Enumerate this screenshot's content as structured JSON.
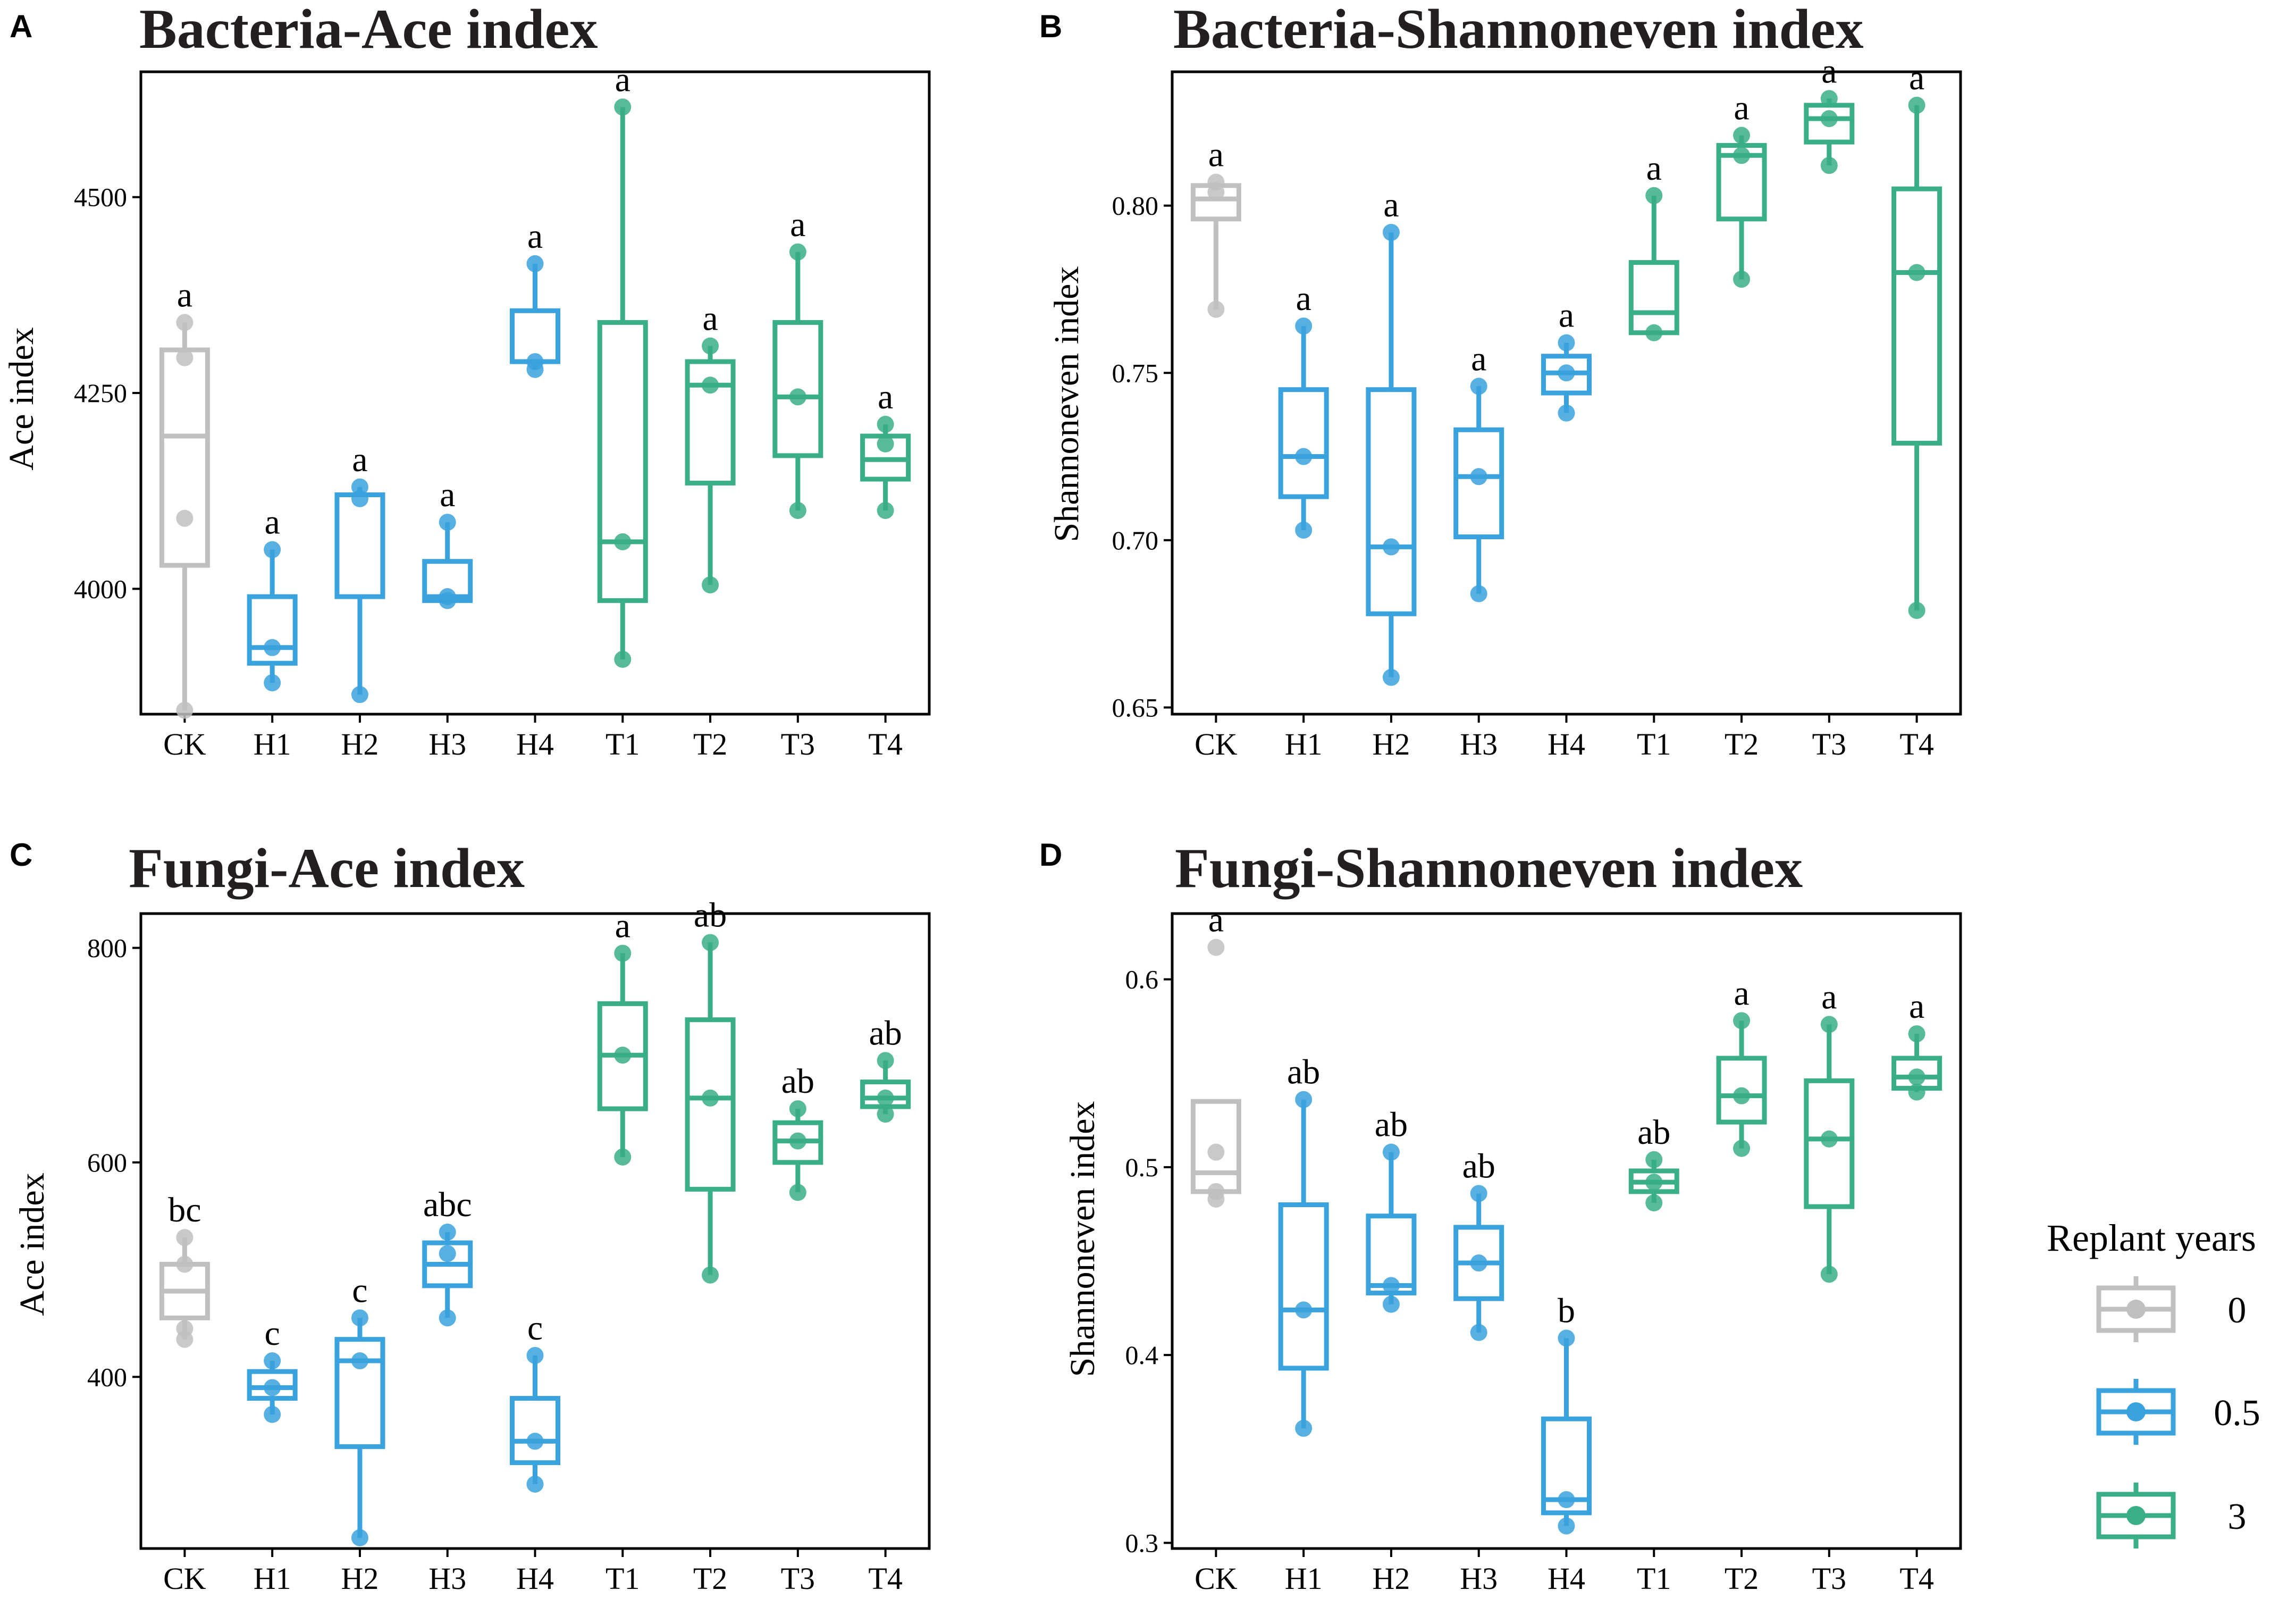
{
  "colors": {
    "0": "#c0c0c0",
    "0.5": "#3aa2dc",
    "3": "#3aae86"
  },
  "categories": [
    "CK",
    "H1",
    "H2",
    "H3",
    "H4",
    "T1",
    "T2",
    "T3",
    "T4"
  ],
  "groups": [
    "0",
    "0.5",
    "0.5",
    "0.5",
    "0.5",
    "3",
    "3",
    "3",
    "3"
  ],
  "legend": {
    "title": "Replant years",
    "items": [
      "0",
      "0.5",
      "3"
    ]
  },
  "chart_data": [
    {
      "panel": "A",
      "type": "box",
      "title": "Bacteria-Ace index",
      "ylabel": "Ace index",
      "ylim": [
        3840,
        4660
      ],
      "yticks": [
        "4000",
        "4250",
        "4500"
      ],
      "letters": [
        "a",
        "a",
        "a",
        "a",
        "a",
        "a",
        "a",
        "a",
        "a"
      ],
      "boxes": [
        {
          "q1": 4030,
          "med": 4195,
          "q3": 4305,
          "lo": 3845,
          "hi": 4340,
          "pts": [
            4295,
            4090,
            4340,
            3845
          ]
        },
        {
          "q1": 3905,
          "med": 3925,
          "q3": 3990,
          "lo": 3880,
          "hi": 4050,
          "pts": [
            3880,
            3925,
            4050
          ]
        },
        {
          "q1": 3990,
          "med": 4120,
          "q3": 4120,
          "lo": 3865,
          "hi": 4130,
          "pts": [
            3865,
            4115,
            4130
          ]
        },
        {
          "q1": 3985,
          "med": 3990,
          "q3": 4035,
          "lo": 3985,
          "hi": 4085,
          "pts": [
            3985,
            3990,
            4085
          ]
        },
        {
          "q1": 4290,
          "med": 4290,
          "q3": 4355,
          "lo": 4280,
          "hi": 4415,
          "pts": [
            4280,
            4290,
            4415
          ]
        },
        {
          "q1": 3985,
          "med": 4060,
          "q3": 4340,
          "lo": 3910,
          "hi": 4615,
          "pts": [
            3910,
            4060,
            4615
          ]
        },
        {
          "q1": 4135,
          "med": 4260,
          "q3": 4290,
          "lo": 4005,
          "hi": 4310,
          "pts": [
            4005,
            4260,
            4310
          ]
        },
        {
          "q1": 4170,
          "med": 4245,
          "q3": 4340,
          "lo": 4100,
          "hi": 4430,
          "pts": [
            4100,
            4245,
            4430
          ]
        },
        {
          "q1": 4140,
          "med": 4165,
          "q3": 4195,
          "lo": 4100,
          "hi": 4210,
          "pts": [
            4100,
            4185,
            4210
          ]
        }
      ]
    },
    {
      "panel": "B",
      "type": "box",
      "title": "Bacteria-Shannoneven index",
      "ylabel": "Shannoneven index",
      "ylim": [
        0.648,
        0.84
      ],
      "yticks": [
        "0.65",
        "0.70",
        "0.75",
        "0.80"
      ],
      "letters": [
        "a",
        "a",
        "a",
        "a",
        "a",
        "a",
        "a",
        "a",
        "a"
      ],
      "boxes": [
        {
          "q1": 0.796,
          "med": 0.802,
          "q3": 0.806,
          "lo": 0.769,
          "hi": 0.807,
          "pts": [
            0.769,
            0.804,
            0.807
          ]
        },
        {
          "q1": 0.713,
          "med": 0.725,
          "q3": 0.745,
          "lo": 0.703,
          "hi": 0.764,
          "pts": [
            0.703,
            0.725,
            0.764
          ]
        },
        {
          "q1": 0.678,
          "med": 0.698,
          "q3": 0.745,
          "lo": 0.659,
          "hi": 0.792,
          "pts": [
            0.659,
            0.698,
            0.792
          ]
        },
        {
          "q1": 0.701,
          "med": 0.719,
          "q3": 0.733,
          "lo": 0.684,
          "hi": 0.746,
          "pts": [
            0.684,
            0.719,
            0.746
          ]
        },
        {
          "q1": 0.744,
          "med": 0.75,
          "q3": 0.755,
          "lo": 0.738,
          "hi": 0.759,
          "pts": [
            0.738,
            0.75,
            0.759
          ]
        },
        {
          "q1": 0.762,
          "med": 0.768,
          "q3": 0.783,
          "lo": 0.762,
          "hi": 0.803,
          "pts": [
            0.762,
            0.803
          ]
        },
        {
          "q1": 0.796,
          "med": 0.815,
          "q3": 0.818,
          "lo": 0.778,
          "hi": 0.821,
          "pts": [
            0.778,
            0.815,
            0.821
          ]
        },
        {
          "q1": 0.819,
          "med": 0.826,
          "q3": 0.83,
          "lo": 0.812,
          "hi": 0.832,
          "pts": [
            0.812,
            0.826,
            0.832
          ]
        },
        {
          "q1": 0.729,
          "med": 0.78,
          "q3": 0.805,
          "lo": 0.679,
          "hi": 0.83,
          "pts": [
            0.679,
            0.78,
            0.83
          ]
        }
      ]
    },
    {
      "panel": "C",
      "type": "box",
      "title": "Fungi-Ace index",
      "ylabel": "Ace index",
      "ylim": [
        240,
        832
      ],
      "yticks": [
        "400",
        "600",
        "800"
      ],
      "letters": [
        "bc",
        "c",
        "c",
        "abc",
        "c",
        "a",
        "ab",
        "ab",
        "ab"
      ],
      "boxes": [
        {
          "q1": 455,
          "med": 480,
          "q3": 505,
          "lo": 435,
          "hi": 530,
          "pts": [
            435,
            505,
            530,
            445
          ]
        },
        {
          "q1": 380,
          "med": 390,
          "q3": 405,
          "lo": 365,
          "hi": 415,
          "pts": [
            365,
            390,
            415
          ]
        },
        {
          "q1": 335,
          "med": 415,
          "q3": 435,
          "lo": 250,
          "hi": 455,
          "pts": [
            250,
            415,
            455
          ]
        },
        {
          "q1": 485,
          "med": 505,
          "q3": 525,
          "lo": 455,
          "hi": 535,
          "pts": [
            455,
            515,
            535
          ]
        },
        {
          "q1": 320,
          "med": 340,
          "q3": 380,
          "lo": 300,
          "hi": 420,
          "pts": [
            300,
            340,
            420
          ]
        },
        {
          "q1": 650,
          "med": 700,
          "q3": 748,
          "lo": 605,
          "hi": 795,
          "pts": [
            605,
            700,
            795
          ]
        },
        {
          "q1": 575,
          "med": 660,
          "q3": 733,
          "lo": 495,
          "hi": 805,
          "pts": [
            495,
            660,
            805
          ]
        },
        {
          "q1": 600,
          "med": 620,
          "q3": 637,
          "lo": 572,
          "hi": 650,
          "pts": [
            572,
            620,
            650
          ]
        },
        {
          "q1": 652,
          "med": 660,
          "q3": 675,
          "lo": 645,
          "hi": 695,
          "pts": [
            645,
            660,
            695
          ]
        }
      ]
    },
    {
      "panel": "D",
      "type": "box",
      "title": "Fungi-Shannoneven index",
      "ylabel": "Shannoneven index",
      "ylim": [
        0.297,
        0.635
      ],
      "yticks": [
        "0.3",
        "0.4",
        "0.5",
        "0.6"
      ],
      "letters": [
        "a",
        "ab",
        "ab",
        "ab",
        "b",
        "ab",
        "a",
        "a",
        "a"
      ],
      "boxes": [
        {
          "q1": 0.487,
          "med": 0.497,
          "q3": 0.535,
          "lo": 0.483,
          "hi": 0.535,
          "pts": [
            0.483,
            0.487,
            0.508,
            0.617
          ]
        },
        {
          "q1": 0.393,
          "med": 0.424,
          "q3": 0.48,
          "lo": 0.361,
          "hi": 0.536,
          "pts": [
            0.361,
            0.424,
            0.536
          ]
        },
        {
          "q1": 0.433,
          "med": 0.437,
          "q3": 0.474,
          "lo": 0.427,
          "hi": 0.508,
          "pts": [
            0.427,
            0.437,
            0.508
          ]
        },
        {
          "q1": 0.43,
          "med": 0.449,
          "q3": 0.468,
          "lo": 0.412,
          "hi": 0.486,
          "pts": [
            0.412,
            0.449,
            0.486
          ]
        },
        {
          "q1": 0.316,
          "med": 0.323,
          "q3": 0.366,
          "lo": 0.309,
          "hi": 0.409,
          "pts": [
            0.309,
            0.323,
            0.409
          ]
        },
        {
          "q1": 0.487,
          "med": 0.492,
          "q3": 0.498,
          "lo": 0.481,
          "hi": 0.504,
          "pts": [
            0.481,
            0.492,
            0.504
          ]
        },
        {
          "q1": 0.524,
          "med": 0.538,
          "q3": 0.558,
          "lo": 0.51,
          "hi": 0.578,
          "pts": [
            0.51,
            0.538,
            0.578
          ]
        },
        {
          "q1": 0.479,
          "med": 0.515,
          "q3": 0.546,
          "lo": 0.443,
          "hi": 0.576,
          "pts": [
            0.443,
            0.515,
            0.576
          ]
        },
        {
          "q1": 0.542,
          "med": 0.548,
          "q3": 0.558,
          "lo": 0.54,
          "hi": 0.571,
          "pts": [
            0.54,
            0.548,
            0.571
          ]
        }
      ]
    }
  ]
}
